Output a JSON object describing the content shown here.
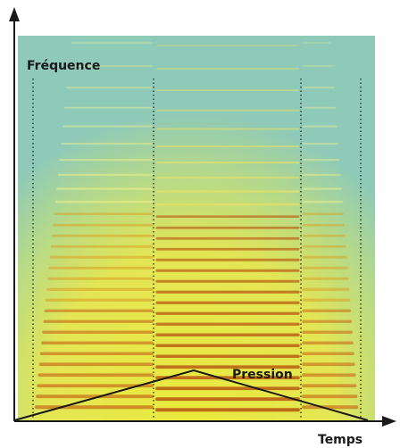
{
  "labels": {
    "y_axis": "Fréquence",
    "x_axis": "Temps",
    "curve": "Pression"
  }
}
